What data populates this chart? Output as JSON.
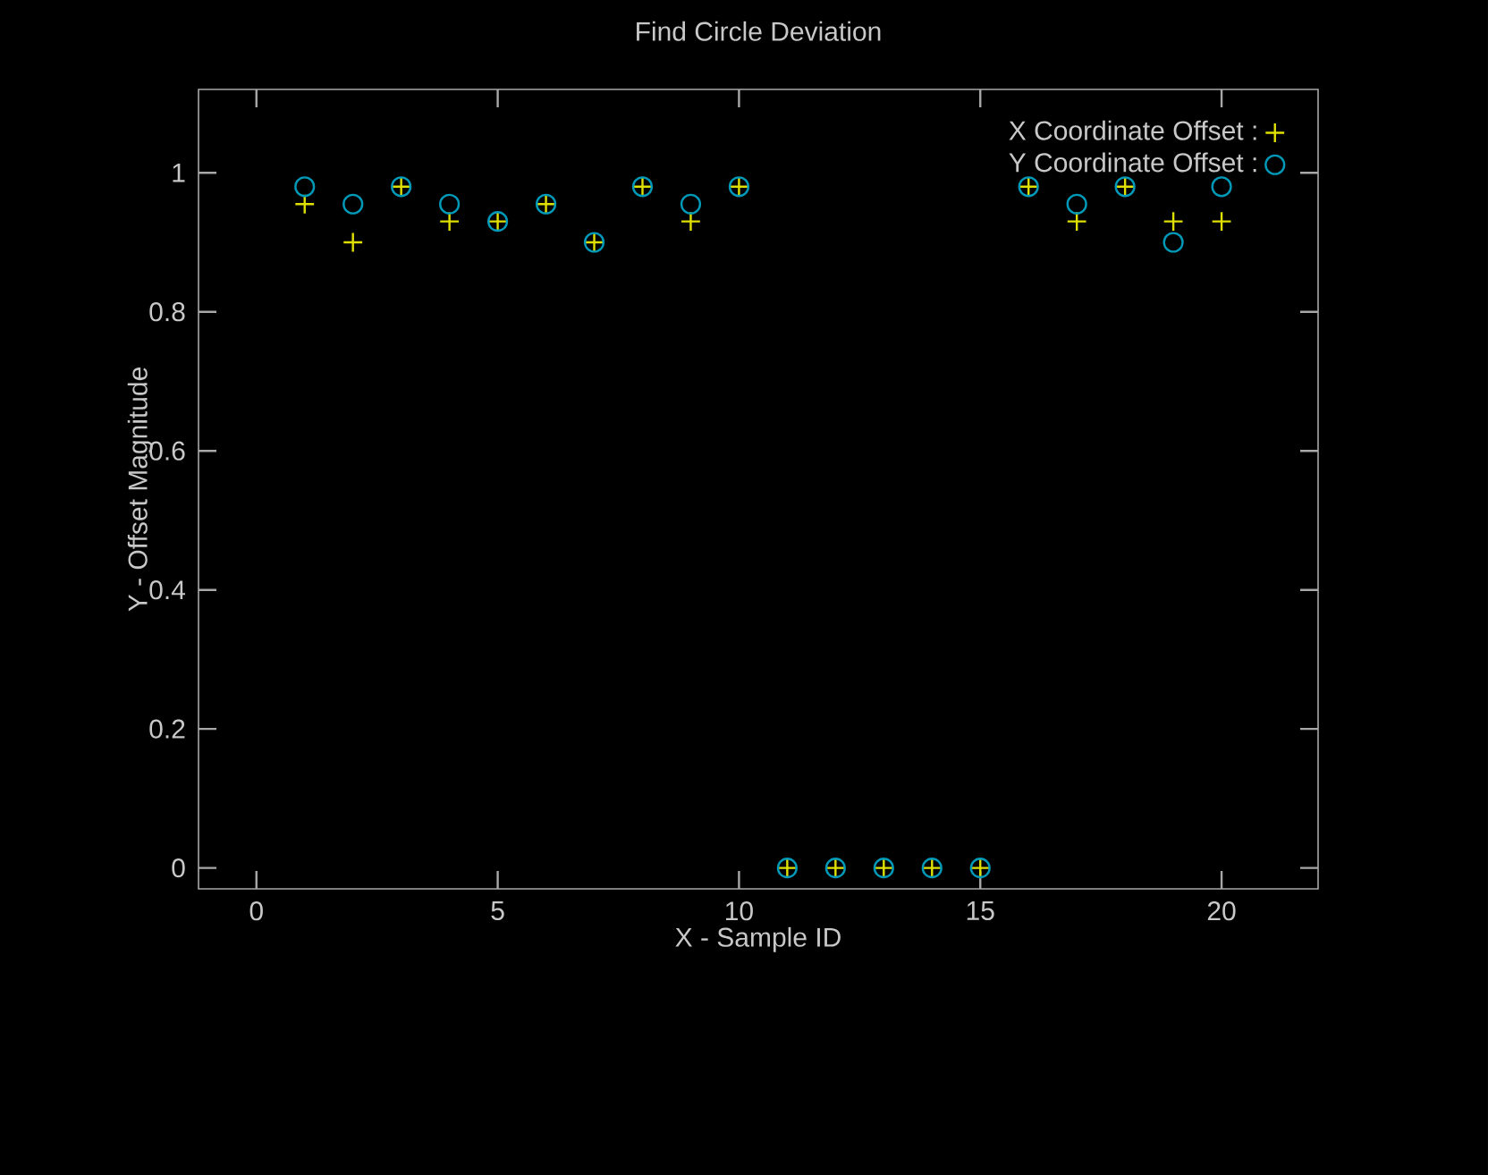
{
  "chart_data": {
    "type": "scatter",
    "title": "Find Circle Deviation",
    "xlabel": "X - Sample ID",
    "ylabel": "Y - Offset Magnitude",
    "x": [
      1,
      2,
      3,
      4,
      5,
      6,
      7,
      8,
      9,
      10,
      11,
      12,
      13,
      14,
      15,
      16,
      17,
      18,
      19,
      20
    ],
    "series": [
      {
        "name": "X Coordinate Offset :",
        "color": "#e0e000",
        "marker": "cross",
        "values": [
          0.955,
          0.9,
          0.98,
          0.93,
          0.93,
          0.955,
          0.9,
          0.98,
          0.93,
          0.98,
          0,
          0,
          0,
          0,
          0,
          0.98,
          0.93,
          0.98,
          0.93,
          0.93
        ]
      },
      {
        "name": "Y Coordinate Offset :",
        "color": "#0099b8",
        "marker": "circle",
        "values": [
          0.98,
          0.955,
          0.98,
          0.955,
          0.93,
          0.955,
          0.9,
          0.98,
          0.955,
          0.98,
          0,
          0,
          0,
          0,
          0,
          0.98,
          0.955,
          0.98,
          0.9,
          0.98
        ]
      }
    ],
    "xlim": [
      -1.2,
      22
    ],
    "ylim": [
      -0.03,
      1.12
    ],
    "xticks": [
      0,
      5,
      10,
      15,
      20
    ],
    "yticks": [
      0,
      0.2,
      0.4,
      0.6,
      0.8,
      1
    ],
    "legend": "top right",
    "grid": false
  }
}
